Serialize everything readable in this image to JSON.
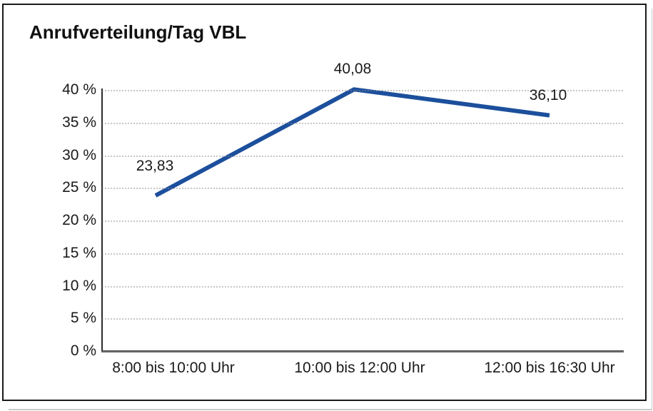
{
  "window": {
    "background": "#ffffff",
    "frame_border_color": "#1a1a1a"
  },
  "chart_data": {
    "type": "line",
    "title": "Anrufverteilung/Tag VBL",
    "categories": [
      "8:00 bis 10:00 Uhr",
      "10:00 bis 12:00 Uhr",
      "12:00 bis 16:30 Uhr"
    ],
    "series": [
      {
        "values": [
          23.83,
          40.08,
          36.1
        ],
        "point_labels": [
          "23,83",
          "40,08",
          "36,10"
        ],
        "color": "#1c4f9c"
      }
    ],
    "xlabel": "",
    "ylabel": "",
    "ylim": [
      0,
      40
    ],
    "ytick_step": 5,
    "ytick_labels": [
      "0 %",
      "5 %",
      "10 %",
      "15 %",
      "20 %",
      "25 %",
      "30 %",
      "35 %",
      "40 %"
    ],
    "grid": "horizontal dotted gridlines",
    "legend": "none",
    "colors": {
      "line": "#1c4f9c",
      "gridline": "#8c8c8c",
      "axis_y": "#2b2b2b",
      "axis_x": "#6b6b6b",
      "text": "#1a1a1a"
    }
  }
}
